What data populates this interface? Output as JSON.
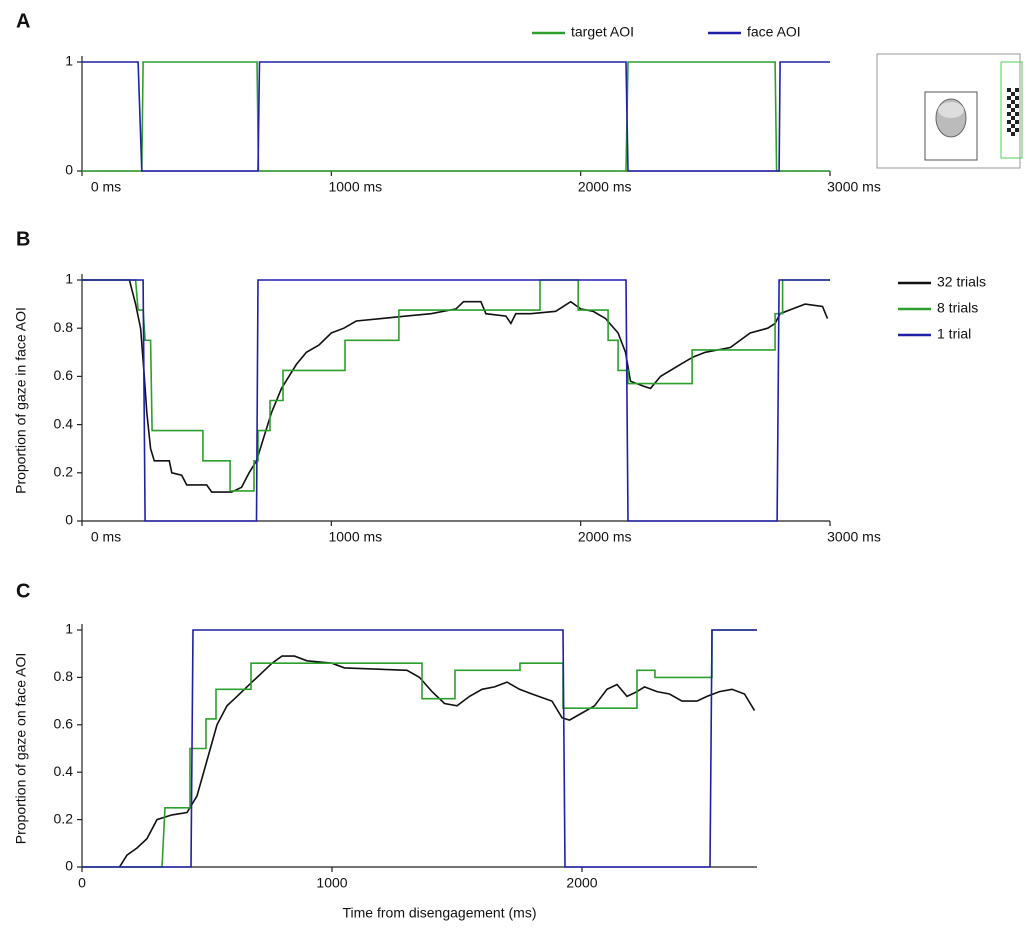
{
  "chart_data": [
    {
      "type": "line",
      "panel": "A",
      "xlim": [
        0,
        3000
      ],
      "ylim": [
        0,
        1
      ],
      "xticks": [
        {
          "value": 0,
          "label": "0 ms"
        },
        {
          "value": 1000,
          "label": "1000 ms"
        },
        {
          "value": 2000,
          "label": "2000 ms"
        },
        {
          "value": 3000,
          "label": "3000 ms"
        }
      ],
      "yticks": [
        0,
        1
      ],
      "legend": "top-right",
      "series": [
        {
          "name": "target AOI",
          "color": "#2ca02c",
          "x": [
            0,
            240,
            245,
            702,
            708,
            2182,
            2190,
            2780,
            2786,
            3000
          ],
          "values": [
            0,
            0,
            1,
            1,
            0,
            0,
            1,
            1,
            0,
            0
          ]
        },
        {
          "name": "face AOI",
          "color": "#1f1fa8",
          "x": [
            0,
            225,
            240,
            706,
            712,
            2182,
            2190,
            2796,
            2800,
            3000
          ],
          "values": [
            1,
            1,
            0,
            0,
            1,
            1,
            0,
            0,
            1,
            1
          ]
        }
      ]
    },
    {
      "type": "line",
      "panel": "B",
      "ylabel": "Proportion of gaze in face AOI",
      "xlim": [
        0,
        3000
      ],
      "ylim": [
        0,
        1
      ],
      "xticks": [
        {
          "value": 0,
          "label": "0 ms"
        },
        {
          "value": 1000,
          "label": "1000 ms"
        },
        {
          "value": 2000,
          "label": "2000 ms"
        },
        {
          "value": 3000,
          "label": "3000 ms"
        }
      ],
      "yticks": [
        0,
        0.2,
        0.4,
        0.6,
        0.8,
        1
      ],
      "legend": "right",
      "series": [
        {
          "name": "32 trials",
          "color": "#111111",
          "x": [
            0,
            190,
            215,
            235,
            250,
            260,
            275,
            290,
            350,
            360,
            400,
            420,
            500,
            520,
            600,
            640,
            670,
            700,
            730,
            760,
            800,
            830,
            860,
            900,
            950,
            1000,
            1050,
            1100,
            1200,
            1300,
            1400,
            1500,
            1530,
            1600,
            1620,
            1700,
            1720,
            1740,
            1800,
            1900,
            1960,
            2000,
            2050,
            2100,
            2150,
            2180,
            2200,
            2250,
            2280,
            2320,
            2400,
            2450,
            2500,
            2600,
            2680,
            2750,
            2780,
            2800,
            2850,
            2900,
            2970,
            2990
          ],
          "values": [
            1,
            1,
            0.9,
            0.8,
            0.6,
            0.45,
            0.3,
            0.25,
            0.25,
            0.2,
            0.19,
            0.15,
            0.15,
            0.12,
            0.12,
            0.14,
            0.2,
            0.25,
            0.35,
            0.45,
            0.55,
            0.6,
            0.65,
            0.7,
            0.73,
            0.78,
            0.8,
            0.83,
            0.84,
            0.85,
            0.86,
            0.88,
            0.91,
            0.91,
            0.86,
            0.85,
            0.82,
            0.86,
            0.86,
            0.87,
            0.91,
            0.88,
            0.87,
            0.84,
            0.78,
            0.7,
            0.58,
            0.56,
            0.55,
            0.6,
            0.65,
            0.68,
            0.7,
            0.72,
            0.78,
            0.8,
            0.82,
            0.86,
            0.88,
            0.9,
            0.89,
            0.84
          ]
        },
        {
          "name": "8 trials",
          "color": "#2ca02c",
          "x": [
            0,
            215,
            225,
            245,
            253,
            275,
            281,
            485,
            485,
            594,
            594,
            690,
            690,
            706,
            706,
            754,
            754,
            806,
            806,
            1055,
            1055,
            1271,
            1271,
            1837,
            1837,
            1990,
            1990,
            2110,
            2110,
            2150,
            2150,
            2190,
            2190,
            2447,
            2447,
            2780,
            2780,
            2810,
            2810,
            3000
          ],
          "values": [
            1,
            1,
            0.875,
            0.875,
            0.75,
            0.75,
            0.375,
            0.375,
            0.25,
            0.25,
            0.125,
            0.125,
            0.25,
            0.25,
            0.375,
            0.375,
            0.5,
            0.5,
            0.625,
            0.625,
            0.75,
            0.75,
            0.875,
            0.875,
            1,
            1,
            0.875,
            0.875,
            0.75,
            0.75,
            0.625,
            0.625,
            0.57,
            0.57,
            0.71,
            0.71,
            0.86,
            0.86,
            1,
            1
          ]
        },
        {
          "name": "1 trial",
          "color": "#1f1fa8",
          "x": [
            0,
            245,
            253,
            700,
            706,
            2182,
            2190,
            2788,
            2796,
            3000
          ],
          "values": [
            1,
            1,
            0,
            0,
            1,
            1,
            0,
            0,
            1,
            1
          ]
        }
      ]
    },
    {
      "type": "line",
      "panel": "C",
      "ylabel": "Proportion of gaze on face AOI",
      "xlabel": "Time from disengagement (ms)",
      "xlim": [
        0,
        2700
      ],
      "ylim": [
        0,
        1
      ],
      "xticks": [
        0,
        1000,
        2000
      ],
      "yticks": [
        0,
        0.2,
        0.4,
        0.6,
        0.8,
        1
      ],
      "series": [
        {
          "color": "#111111",
          "x": [
            150,
            180,
            220,
            260,
            300,
            360,
            420,
            460,
            500,
            540,
            580,
            620,
            680,
            720,
            760,
            800,
            850,
            900,
            1000,
            1050,
            1300,
            1350,
            1400,
            1450,
            1500,
            1550,
            1600,
            1650,
            1700,
            1750,
            1800,
            1880,
            1920,
            1950,
            2000,
            2050,
            2100,
            2140,
            2180,
            2220,
            2250,
            2300,
            2350,
            2400,
            2460,
            2500,
            2550,
            2600,
            2650,
            2690
          ],
          "values": [
            0,
            0.05,
            0.08,
            0.12,
            0.2,
            0.22,
            0.23,
            0.3,
            0.45,
            0.6,
            0.68,
            0.72,
            0.78,
            0.82,
            0.86,
            0.89,
            0.89,
            0.87,
            0.86,
            0.84,
            0.83,
            0.8,
            0.74,
            0.69,
            0.68,
            0.72,
            0.75,
            0.76,
            0.78,
            0.75,
            0.73,
            0.7,
            0.63,
            0.62,
            0.65,
            0.68,
            0.75,
            0.77,
            0.72,
            0.74,
            0.76,
            0.74,
            0.73,
            0.7,
            0.7,
            0.72,
            0.74,
            0.75,
            0.73,
            0.66
          ]
        },
        {
          "color": "#2ca02c",
          "x": [
            0,
            320,
            332,
            432,
            432,
            496,
            496,
            536,
            536,
            676,
            676,
            1360,
            1360,
            1492,
            1492,
            1752,
            1752,
            1924,
            1924,
            2220,
            2220,
            2292,
            2292,
            2520,
            2520,
            2700
          ],
          "values": [
            0,
            0,
            0.25,
            0.25,
            0.5,
            0.5,
            0.625,
            0.625,
            0.75,
            0.75,
            0.86,
            0.86,
            0.71,
            0.71,
            0.83,
            0.83,
            0.86,
            0.86,
            0.67,
            0.67,
            0.83,
            0.83,
            0.8,
            0.8,
            1,
            1
          ]
        },
        {
          "color": "#1f1fa8",
          "x": [
            0,
            436,
            444,
            1924,
            1932,
            2512,
            2520,
            2700
          ],
          "values": [
            0,
            0,
            1,
            1,
            0,
            0,
            1,
            1
          ]
        }
      ]
    }
  ]
}
